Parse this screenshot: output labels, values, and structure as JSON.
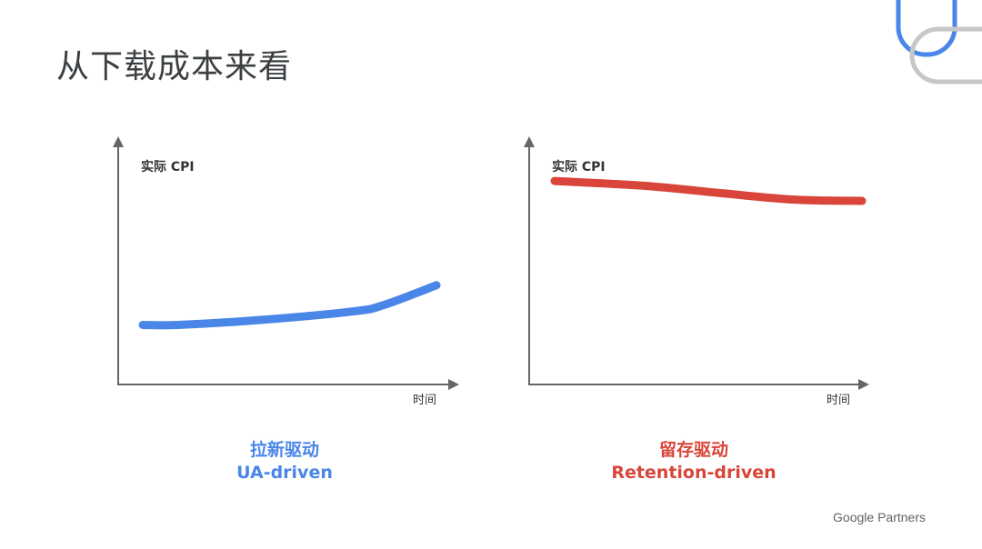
{
  "title": "从下载成本来看",
  "brand": "Google Partners",
  "colors": {
    "ua": "#4a86e8",
    "retention": "#d9453a",
    "axis": "#666666",
    "deco_blue": "#4a86e8",
    "deco_gray": "#c7c7c7"
  },
  "chart_data": [
    {
      "type": "line",
      "ylabel": "实际 CPI",
      "xlabel": "时间",
      "caption_cn": "拉新驱动",
      "caption_en": "UA-driven",
      "series": [
        {
          "x": [
            0,
            0.12,
            0.4,
            0.72,
            0.82,
            1.0
          ],
          "y": [
            0.24,
            0.24,
            0.26,
            0.295,
            0.32,
            0.4
          ]
        }
      ],
      "xlim": [
        0,
        1
      ],
      "ylim": [
        0,
        1
      ],
      "grid": false
    },
    {
      "type": "line",
      "ylabel": "实际 CPI",
      "xlabel": "时间",
      "caption_cn": "留存驱动",
      "caption_en": "Retention-driven",
      "series": [
        {
          "x": [
            0,
            0.3,
            0.55,
            0.78,
            1.0
          ],
          "y": [
            0.82,
            0.8,
            0.77,
            0.745,
            0.74
          ]
        }
      ],
      "xlim": [
        0,
        1
      ],
      "ylim": [
        0,
        1
      ],
      "grid": false
    }
  ]
}
